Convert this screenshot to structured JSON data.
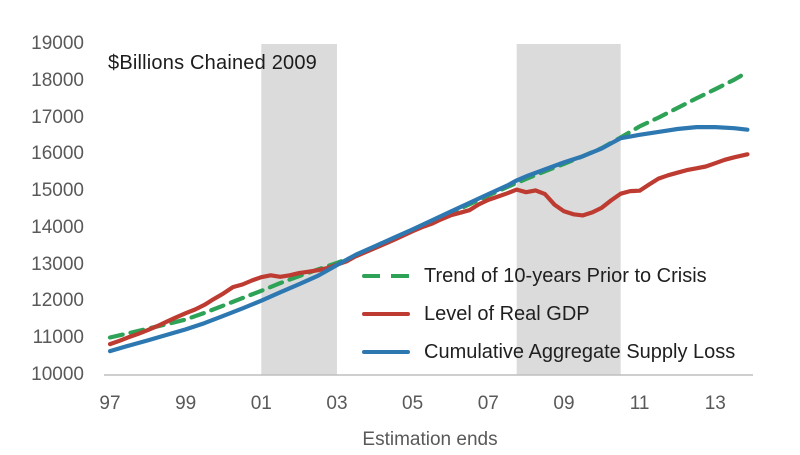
{
  "chart_data": {
    "type": "line",
    "title": "$Billions Chained 2009",
    "xlabel": "Estimation ends",
    "ylabel": "",
    "ylim": [
      10000,
      19000
    ],
    "xlim": [
      1997,
      2013.85
    ],
    "grid": false,
    "legend_position": "inside-lower-right",
    "yticks": [
      "19000",
      "18000",
      "17000",
      "16000",
      "15000",
      "14000",
      "13000",
      "12000",
      "11000",
      "10000"
    ],
    "xticks": [
      {
        "year": 1997,
        "label": "97"
      },
      {
        "year": 1999,
        "label": "99"
      },
      {
        "year": 2001,
        "label": "01"
      },
      {
        "year": 2003,
        "label": "03"
      },
      {
        "year": 2005,
        "label": "05"
      },
      {
        "year": 2007,
        "label": "07"
      },
      {
        "year": 2009,
        "label": "09"
      },
      {
        "year": 2011,
        "label": "11"
      },
      {
        "year": 2013,
        "label": "13"
      }
    ],
    "recession_bands": [
      {
        "start": 2001.0,
        "end": 2003.0
      },
      {
        "start": 2007.75,
        "end": 2010.5
      }
    ],
    "colors": {
      "trend": "#2ea257",
      "gdp": "#be3b31",
      "supply": "#2e78b2",
      "band": "#dbdbdb",
      "axis_line": "#bfbfbf",
      "tick_text": "#595959",
      "title_text": "#1c1c1c"
    },
    "series": [
      {
        "name": "Trend of 10-years Prior to Crisis",
        "key": "trend",
        "style": "dashed",
        "color": "#2ea257",
        "data": [
          [
            1997,
            11020
          ],
          [
            1997.5,
            11140
          ],
          [
            1998,
            11260
          ],
          [
            1998.5,
            11380
          ],
          [
            1999,
            11510
          ],
          [
            1999.5,
            11690
          ],
          [
            2000,
            11890
          ],
          [
            2000.5,
            12090
          ],
          [
            2001,
            12290
          ],
          [
            2001.5,
            12500
          ],
          [
            2002,
            12690
          ],
          [
            2002.5,
            12870
          ],
          [
            2003,
            13050
          ],
          [
            2003.5,
            13230
          ],
          [
            2004,
            13450
          ],
          [
            2004.5,
            13680
          ],
          [
            2005,
            13920
          ],
          [
            2005.5,
            14160
          ],
          [
            2006,
            14400
          ],
          [
            2006.5,
            14640
          ],
          [
            2007,
            14880
          ],
          [
            2007.5,
            15110
          ],
          [
            2008,
            15330
          ],
          [
            2008.5,
            15540
          ],
          [
            2009,
            15740
          ],
          [
            2009.5,
            15950
          ],
          [
            2010,
            16170
          ],
          [
            2010.5,
            16460
          ],
          [
            2011,
            16760
          ],
          [
            2011.5,
            17000
          ],
          [
            2012,
            17260
          ],
          [
            2012.5,
            17520
          ],
          [
            2013,
            17770
          ],
          [
            2013.5,
            18030
          ],
          [
            2013.85,
            18240
          ]
        ]
      },
      {
        "name": "Level of Real GDP",
        "key": "gdp",
        "style": "solid",
        "color": "#be3b31",
        "data": [
          [
            1997,
            10840
          ],
          [
            1997.25,
            10930
          ],
          [
            1997.5,
            11030
          ],
          [
            1997.75,
            11120
          ],
          [
            1998,
            11220
          ],
          [
            1998.25,
            11330
          ],
          [
            1998.5,
            11450
          ],
          [
            1998.75,
            11570
          ],
          [
            1999,
            11680
          ],
          [
            1999.25,
            11780
          ],
          [
            1999.5,
            11910
          ],
          [
            1999.75,
            12070
          ],
          [
            2000,
            12220
          ],
          [
            2000.25,
            12390
          ],
          [
            2000.5,
            12460
          ],
          [
            2000.75,
            12570
          ],
          [
            2001,
            12660
          ],
          [
            2001.25,
            12710
          ],
          [
            2001.5,
            12670
          ],
          [
            2001.75,
            12710
          ],
          [
            2002,
            12770
          ],
          [
            2002.25,
            12810
          ],
          [
            2002.5,
            12850
          ],
          [
            2002.75,
            12910
          ],
          [
            2003,
            13000
          ],
          [
            2003.25,
            13090
          ],
          [
            2003.5,
            13230
          ],
          [
            2003.75,
            13340
          ],
          [
            2004,
            13450
          ],
          [
            2004.25,
            13560
          ],
          [
            2004.5,
            13670
          ],
          [
            2004.75,
            13790
          ],
          [
            2005,
            13910
          ],
          [
            2005.25,
            14020
          ],
          [
            2005.5,
            14110
          ],
          [
            2005.75,
            14230
          ],
          [
            2006,
            14340
          ],
          [
            2006.25,
            14410
          ],
          [
            2006.5,
            14480
          ],
          [
            2006.75,
            14640
          ],
          [
            2007,
            14760
          ],
          [
            2007.25,
            14850
          ],
          [
            2007.5,
            14940
          ],
          [
            2007.75,
            15040
          ],
          [
            2008,
            14970
          ],
          [
            2008.25,
            15020
          ],
          [
            2008.5,
            14920
          ],
          [
            2008.75,
            14630
          ],
          [
            2009,
            14450
          ],
          [
            2009.25,
            14370
          ],
          [
            2009.5,
            14340
          ],
          [
            2009.75,
            14420
          ],
          [
            2010,
            14550
          ],
          [
            2010.25,
            14750
          ],
          [
            2010.5,
            14930
          ],
          [
            2010.75,
            15000
          ],
          [
            2011,
            15010
          ],
          [
            2011.25,
            15180
          ],
          [
            2011.5,
            15340
          ],
          [
            2011.75,
            15430
          ],
          [
            2012,
            15500
          ],
          [
            2012.25,
            15570
          ],
          [
            2012.5,
            15620
          ],
          [
            2012.75,
            15670
          ],
          [
            2013,
            15760
          ],
          [
            2013.25,
            15850
          ],
          [
            2013.5,
            15920
          ],
          [
            2013.85,
            16000
          ]
        ]
      },
      {
        "name": "Cumulative Aggregate Supply Loss",
        "key": "supply",
        "style": "solid",
        "color": "#2e78b2",
        "data": [
          [
            1997,
            10650
          ],
          [
            1997.5,
            10800
          ],
          [
            1998,
            10940
          ],
          [
            1998.5,
            11090
          ],
          [
            1999,
            11240
          ],
          [
            1999.5,
            11410
          ],
          [
            2000,
            11610
          ],
          [
            2000.5,
            11810
          ],
          [
            2001,
            12020
          ],
          [
            2001.5,
            12250
          ],
          [
            2002,
            12470
          ],
          [
            2002.5,
            12700
          ],
          [
            2003,
            12990
          ],
          [
            2003.5,
            13270
          ],
          [
            2004,
            13500
          ],
          [
            2004.5,
            13730
          ],
          [
            2005,
            13960
          ],
          [
            2005.5,
            14200
          ],
          [
            2006,
            14440
          ],
          [
            2006.5,
            14680
          ],
          [
            2007,
            14920
          ],
          [
            2007.5,
            15150
          ],
          [
            2007.75,
            15290
          ],
          [
            2008,
            15400
          ],
          [
            2008.5,
            15590
          ],
          [
            2009,
            15780
          ],
          [
            2009.5,
            15950
          ],
          [
            2010,
            16160
          ],
          [
            2010.25,
            16300
          ],
          [
            2010.5,
            16440
          ],
          [
            2011,
            16530
          ],
          [
            2011.5,
            16610
          ],
          [
            2012,
            16690
          ],
          [
            2012.5,
            16740
          ],
          [
            2013,
            16740
          ],
          [
            2013.5,
            16710
          ],
          [
            2013.85,
            16670
          ]
        ]
      }
    ]
  }
}
